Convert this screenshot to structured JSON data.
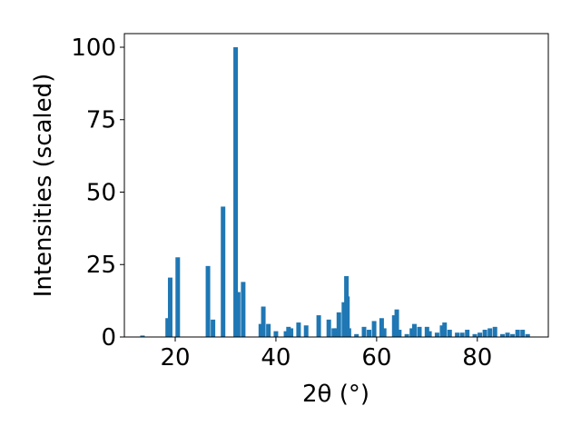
{
  "chart_data": {
    "type": "bar",
    "xlabel": "2θ (°)",
    "ylabel": "Intensities (scaled)",
    "color": "#1f77b4",
    "x": [
      13.5,
      18.5,
      19,
      20.5,
      26.5,
      27.5,
      29.5,
      32,
      32.5,
      33.5,
      37,
      37.5,
      38.5,
      40,
      42,
      42.5,
      43,
      44.5,
      46,
      48.5,
      50.5,
      51.5,
      52,
      52.5,
      53.5,
      54,
      54.2,
      54.5,
      56,
      57.5,
      58.5,
      59.5,
      61,
      61.5,
      63.5,
      64,
      64.5,
      66,
      67,
      67.5,
      68.5,
      70,
      70.5,
      72,
      73,
      73.5,
      74.5,
      76,
      77,
      78,
      79.5,
      80.5,
      81.5,
      82.5,
      83.5,
      85,
      86,
      87,
      88,
      89,
      90
    ],
    "values": [
      0.5,
      6.5,
      20.5,
      27.5,
      24.5,
      6,
      45,
      100,
      15.5,
      19,
      4.5,
      10.5,
      4.5,
      2,
      2,
      3.5,
      3,
      5,
      4,
      7.5,
      6,
      3,
      3,
      8.5,
      12,
      21,
      14,
      3,
      1,
      3.5,
      2.5,
      5.5,
      6.5,
      3,
      7.5,
      9.5,
      2.5,
      1,
      3,
      4.5,
      3.5,
      3.5,
      2,
      1.5,
      4,
      5,
      2.5,
      1.5,
      1.5,
      2.5,
      1,
      1.5,
      2.5,
      3,
      3.5,
      1,
      1.5,
      1,
      2.5,
      2.5,
      1
    ],
    "xlim": [
      9.9,
      94.1
    ],
    "ylim": [
      0,
      104.7
    ],
    "xticks": [
      20,
      40,
      60,
      80
    ],
    "yticks": [
      0,
      25,
      50,
      75,
      100
    ]
  }
}
